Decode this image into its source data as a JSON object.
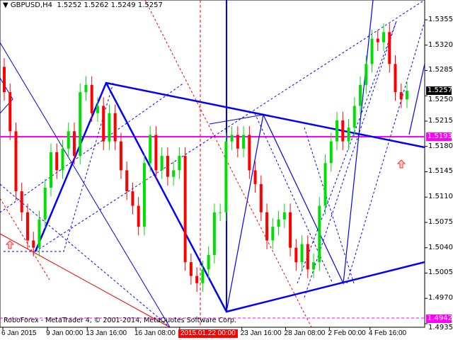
{
  "header": {
    "symbol": "GBPUSD,H4",
    "ohlc": "1.5252 1.5262 1.5249 1.5257"
  },
  "footer": {
    "copyright": "RoboForex - MetaTrader 4, © 2001-2014, MetaQuotes Software Corp."
  },
  "colors": {
    "bull": "#00e000",
    "bear": "#ff0000",
    "trend": "#0000ff",
    "level": "#ff00ff",
    "price_tag": "#000000"
  },
  "chart_data": {
    "type": "candlestick",
    "symbol": "GBPUSD",
    "timeframe": "H4",
    "ylim": [
      1.4935,
      1.539
    ],
    "y_ticks": [
      "1.5355",
      "1.5320",
      "1.5285",
      "1.5250",
      "1.5215",
      "1.5180",
      "1.5145",
      "1.5110",
      "1.5075",
      "1.5040",
      "1.5005",
      "1.4970",
      "1.4935"
    ],
    "x_ticks": [
      "6 Jan 2015",
      "9 Jan 00:00",
      "13 Jan 16:00",
      "16 Jan 08:00",
      "2015.01.22 00:00",
      "23 Jan 16:00",
      "28 Jan 08:00",
      "2 Feb 00:00",
      "4 Feb 16:00"
    ],
    "highlighted_time": "2015.01.22 00:00",
    "current_price": "1.5257",
    "levels": [
      {
        "price": "1.5193",
        "style": "solid"
      },
      {
        "price": "1.4942",
        "style": "dashed"
      }
    ],
    "first_open": 1.529,
    "closes": [
      1.5255,
      1.5201,
      1.5118,
      1.5089,
      1.505,
      1.504,
      1.5079,
      1.5123,
      1.5172,
      1.5147,
      1.5177,
      1.5201,
      1.5167,
      1.5255,
      1.5265,
      1.5226,
      1.5236,
      1.5187,
      1.5226,
      1.5187,
      1.5147,
      1.5118,
      1.5098,
      1.5069,
      1.5157,
      1.5196,
      1.5147,
      1.5167,
      1.5138,
      1.5147,
      1.5167,
      1.502,
      1.5001,
      1.4991,
      1.501,
      1.503,
      1.5089,
      1.5089,
      1.5187,
      1.5196,
      1.5177,
      1.5196,
      1.5147,
      1.5128,
      1.5089,
      1.505,
      1.5069,
      1.5079,
      1.5089,
      1.504,
      1.502,
      1.5045,
      1.501,
      1.502,
      1.5098,
      1.5157,
      1.5187,
      1.5216,
      1.5187,
      1.5206,
      1.5236,
      1.5265,
      1.5294,
      1.5329,
      1.5324,
      1.5338,
      1.5294,
      1.5255,
      1.5245,
      1.5257
    ]
  }
}
